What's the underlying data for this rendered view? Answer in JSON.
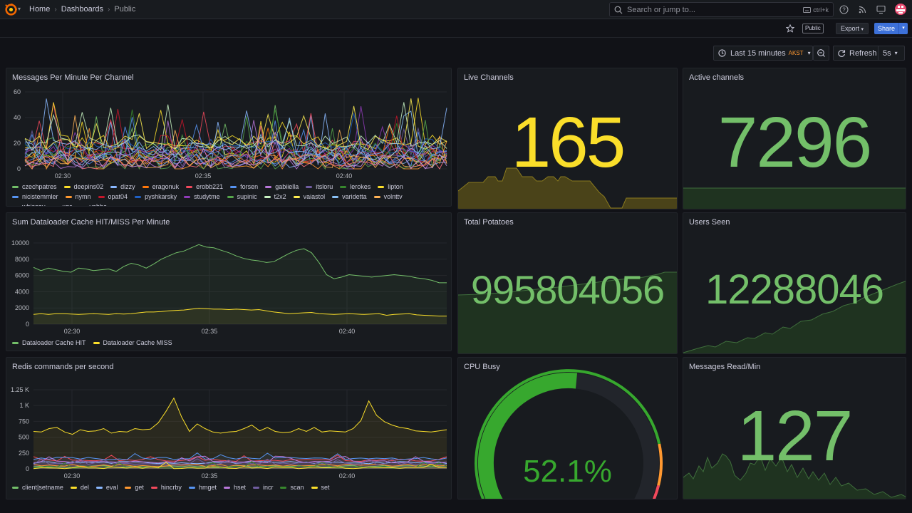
{
  "nav": {
    "breadcrumb": [
      "Home",
      "Dashboards",
      "Public"
    ],
    "search_placeholder": "Search or jump to...",
    "search_shortcut": "ctrl+k"
  },
  "toolbar": {
    "public_badge": "Public",
    "export_label": "Export",
    "share_label": "Share"
  },
  "time": {
    "range_label": "Last 15 minutes",
    "timezone": "AKST",
    "refresh_label": "Refresh",
    "interval": "5s"
  },
  "colors": {
    "accent_blue": "#3d71d9",
    "stat_yellow": "#fade2a",
    "stat_green": "#73bf69",
    "gauge_green": "#37a82e",
    "warn_orange": "#ff9830",
    "crit_red": "#f2495c"
  },
  "panels": {
    "messages_per_channel": {
      "title": "Messages Per Minute Per Channel",
      "yticks": [
        "60",
        "40",
        "20",
        "0"
      ],
      "xticks": [
        "02:30",
        "02:35",
        "02:40"
      ],
      "legend": [
        {
          "name": "czechpatres",
          "color": "#73bf69"
        },
        {
          "name": "deepins02",
          "color": "#fade2a"
        },
        {
          "name": "dizzy",
          "color": "#8ab8ff"
        },
        {
          "name": "eragonuk",
          "color": "#ff780a"
        },
        {
          "name": "erobb221",
          "color": "#f2495c"
        },
        {
          "name": "forsen",
          "color": "#5794f2"
        },
        {
          "name": "gabiiella",
          "color": "#b877d9"
        },
        {
          "name": "itsloru",
          "color": "#705da0"
        },
        {
          "name": "lerokes",
          "color": "#37872d"
        },
        {
          "name": "lipton",
          "color": "#fade2a"
        },
        {
          "name": "nicistemmler",
          "color": "#5794f2"
        },
        {
          "name": "nymn",
          "color": "#ff9830"
        },
        {
          "name": "opat04",
          "color": "#c4162a"
        },
        {
          "name": "pyshkarsky",
          "color": "#1f60c4"
        },
        {
          "name": "studytme",
          "color": "#8f3bb8"
        },
        {
          "name": "supinic",
          "color": "#56a64b"
        },
        {
          "name": "t2x2",
          "color": "#c8f2c2"
        },
        {
          "name": "vaiastol",
          "color": "#ffee52"
        },
        {
          "name": "varidetta",
          "color": "#8ac1f5"
        },
        {
          "name": "volnttv",
          "color": "#ffb357"
        },
        {
          "name": "whisqey",
          "color": "#ff7383"
        },
        {
          "name": "xqc",
          "color": "#8ab8ff"
        },
        {
          "name": "yabbe",
          "color": "#ca95e5"
        }
      ]
    },
    "dataloader_cache": {
      "title": "Sum Dataloader Cache HIT/MISS Per Minute",
      "yticks": [
        "10000",
        "8000",
        "6000",
        "4000",
        "2000",
        "0"
      ],
      "xticks": [
        "02:30",
        "02:35",
        "02:40"
      ],
      "legend": [
        {
          "name": "Dataloader Cache HIT",
          "color": "#73bf69"
        },
        {
          "name": "Dataloader Cache MISS",
          "color": "#fade2a"
        }
      ]
    },
    "redis_commands": {
      "title": "Redis commands per second",
      "yticks": [
        "1.25 K",
        "1 K",
        "750",
        "500",
        "250",
        "0"
      ],
      "xticks": [
        "02:30",
        "02:35",
        "02:40"
      ],
      "legend": [
        {
          "name": "client|setname",
          "color": "#73bf69"
        },
        {
          "name": "del",
          "color": "#fade2a"
        },
        {
          "name": "eval",
          "color": "#8ab8ff"
        },
        {
          "name": "get",
          "color": "#ff9830"
        },
        {
          "name": "hincrby",
          "color": "#f2495c"
        },
        {
          "name": "hmget",
          "color": "#5794f2"
        },
        {
          "name": "hset",
          "color": "#b877d9"
        },
        {
          "name": "incr",
          "color": "#705da0"
        },
        {
          "name": "scan",
          "color": "#37872d"
        },
        {
          "name": "set",
          "color": "#fade2a"
        }
      ]
    },
    "live_channels": {
      "title": "Live Channels",
      "value": "165"
    },
    "active_channels": {
      "title": "Active channels",
      "value": "7296"
    },
    "total_potatoes": {
      "title": "Total Potatoes",
      "value": "995804056"
    },
    "users_seen": {
      "title": "Users Seen",
      "value": "12288046"
    },
    "cpu_busy": {
      "title": "CPU Busy",
      "value": "52.1%",
      "fraction": 0.521
    },
    "messages_read": {
      "title": "Messages Read/Min",
      "value": "127"
    }
  }
}
